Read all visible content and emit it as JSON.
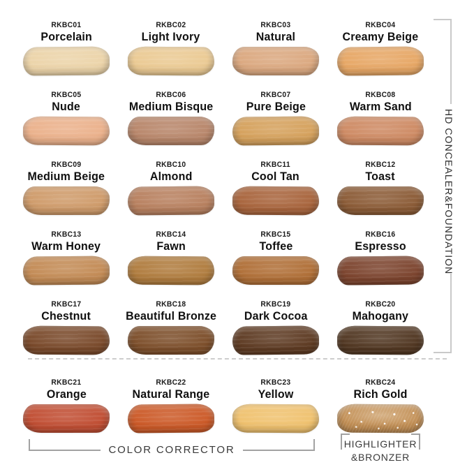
{
  "side_group": {
    "label": "HD CONCEALER&FOUNDATION"
  },
  "bottom_groups": {
    "color_corrector": "COLOR CORRECTOR",
    "highlighter_line1": "HIGHLIGHTER",
    "highlighter_line2": "&BRONZER"
  },
  "swatches": [
    {
      "code": "RKBC01",
      "name": "Porcelain",
      "color": "#ECD4A9"
    },
    {
      "code": "RKBC02",
      "name": "Light Ivory",
      "color": "#EBCA93"
    },
    {
      "code": "RKBC03",
      "name": "Natural",
      "color": "#DBA87F"
    },
    {
      "code": "RKBC04",
      "name": "Creamy Beige",
      "color": "#E7A765"
    },
    {
      "code": "RKBC05",
      "name": "Nude",
      "color": "#EBB18B"
    },
    {
      "code": "RKBC06",
      "name": "Medium Bisque",
      "color": "#B8866A"
    },
    {
      "code": "RKBC07",
      "name": "Pure Beige",
      "color": "#D5A15C"
    },
    {
      "code": "RKBC08",
      "name": "Warm Sand",
      "color": "#CE8A63"
    },
    {
      "code": "RKBC09",
      "name": "Medium Beige",
      "color": "#CF9B6A"
    },
    {
      "code": "RKBC10",
      "name": "Almond",
      "color": "#B8805F"
    },
    {
      "code": "RKBC11",
      "name": "Cool Tan",
      "color": "#A8643C"
    },
    {
      "code": "RKBC12",
      "name": "Toast",
      "color": "#8B5B36"
    },
    {
      "code": "RKBC13",
      "name": "Warm Honey",
      "color": "#C38B55"
    },
    {
      "code": "RKBC14",
      "name": "Fawn",
      "color": "#B07C3E"
    },
    {
      "code": "RKBC15",
      "name": "Toffee",
      "color": "#B06F37"
    },
    {
      "code": "RKBC16",
      "name": "Espresso",
      "color": "#7C442E"
    },
    {
      "code": "RKBC17",
      "name": "Chestnut",
      "color": "#7A4A2B"
    },
    {
      "code": "RKBC18",
      "name": "Beautiful Bronze",
      "color": "#7D4F2B"
    },
    {
      "code": "RKBC19",
      "name": "Dark Cocoa",
      "color": "#5E3B23"
    },
    {
      "code": "RKBC20",
      "name": "Mahogany",
      "color": "#513722"
    },
    {
      "code": "RKBC21",
      "name": "Orange",
      "color": "#C14E33"
    },
    {
      "code": "RKBC22",
      "name": "Natural Range",
      "color": "#CC5A28"
    },
    {
      "code": "RKBC23",
      "name": "Yellow",
      "color": "#F0C26F"
    },
    {
      "code": "RKBC24",
      "name": "Rich Gold",
      "color": "#C28F55"
    }
  ]
}
